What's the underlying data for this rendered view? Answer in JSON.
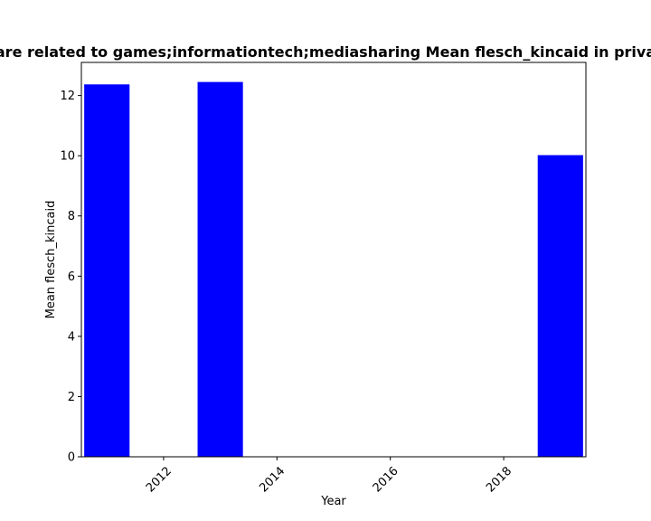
{
  "chart_data": {
    "type": "bar",
    "title": "…are related to games;informationtech;mediasharing Mean flesch_kincaid in priva…",
    "xlabel": "Year",
    "ylabel": "Mean flesch_kincaid",
    "x": [
      2011,
      2013,
      2019
    ],
    "values": [
      12.37,
      12.45,
      10.02
    ],
    "bar_width_years": 0.8,
    "xlim": [
      2010.55,
      2019.45
    ],
    "ylim": [
      0,
      13.1
    ],
    "xticks": [
      2012,
      2014,
      2016,
      2018
    ],
    "xtick_labels": [
      "2012",
      "2014",
      "2016",
      "2018"
    ],
    "xtick_rotation_deg": 45,
    "yticks": [
      0,
      2,
      4,
      6,
      8,
      10,
      12
    ],
    "ytick_labels": [
      "0",
      "2",
      "4",
      "6",
      "8",
      "10",
      "12"
    ],
    "bar_color": "#0000ff",
    "grid": false,
    "legend": false
  }
}
